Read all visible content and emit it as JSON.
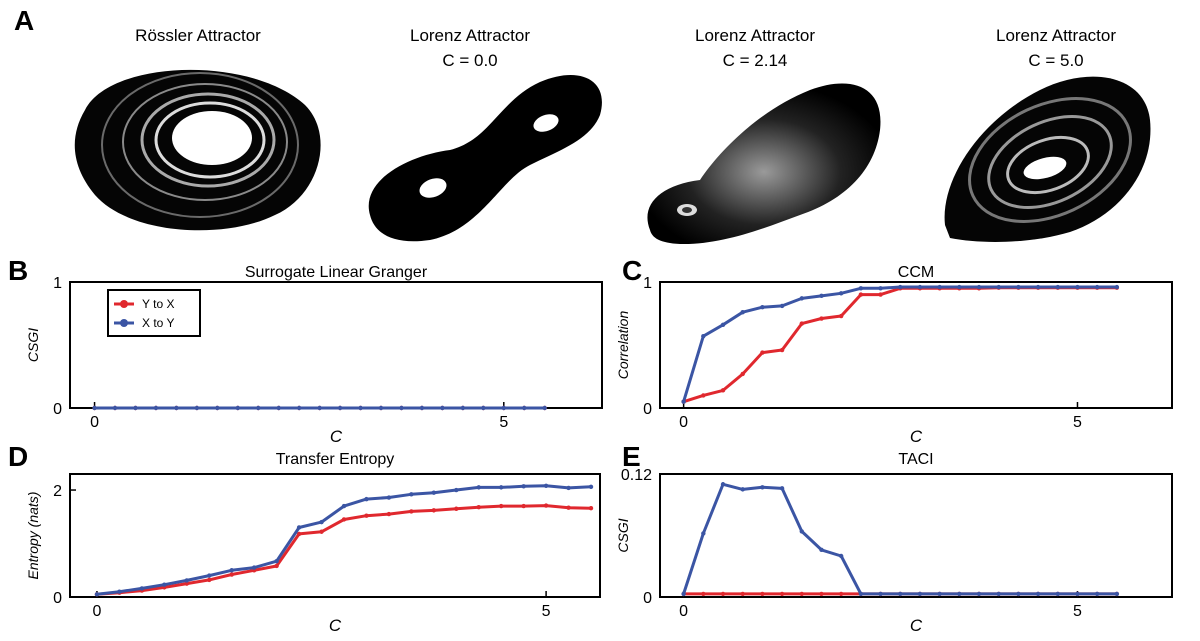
{
  "panel_a": {
    "letter": "A",
    "attractors": [
      {
        "title": "Rössler Attractor",
        "subtitle": ""
      },
      {
        "title": "Lorenz Attractor",
        "subtitle": "C = 0.0"
      },
      {
        "title": "Lorenz Attractor",
        "subtitle": "C = 2.14"
      },
      {
        "title": "Lorenz Attractor",
        "subtitle": "C = 5.0"
      }
    ]
  },
  "colors": {
    "y_to_x": "#e0282e",
    "x_to_y": "#3b55a4"
  },
  "chart_data": [
    {
      "id": "B",
      "letter": "B",
      "type": "line",
      "title": "Surrogate Linear Granger",
      "xlabel": "C",
      "ylabel": "CSGI",
      "xlim": [
        -0.3,
        6.2
      ],
      "ylim": [
        0,
        1
      ],
      "xticks": [
        0,
        5
      ],
      "yticks": [
        0,
        1
      ],
      "ytick_labels": [
        "0",
        "1"
      ],
      "legend": {
        "placement": "top-left",
        "entries": [
          "Y to X",
          "X to Y"
        ]
      },
      "x": [
        0,
        0.25,
        0.5,
        0.75,
        1,
        1.25,
        1.5,
        1.75,
        2,
        2.25,
        2.5,
        2.75,
        3,
        3.25,
        3.5,
        3.75,
        4,
        4.25,
        4.5,
        4.75,
        5,
        5.25,
        5.5
      ],
      "series": [
        {
          "name": "Y to X",
          "values": [
            0,
            0,
            0,
            0,
            0,
            0,
            0,
            0,
            0,
            0,
            0,
            0,
            0,
            0,
            0,
            0,
            0,
            0,
            0,
            0,
            0,
            0,
            0
          ]
        },
        {
          "name": "X to Y",
          "values": [
            0,
            0,
            0,
            0,
            0,
            0,
            0,
            0,
            0,
            0,
            0,
            0,
            0,
            0,
            0,
            0,
            0,
            0,
            0,
            0,
            0,
            0,
            0
          ]
        }
      ]
    },
    {
      "id": "C",
      "letter": "C",
      "type": "line",
      "title": "CCM",
      "xlabel": "C",
      "ylabel": "Correlation",
      "xlim": [
        -0.3,
        6.2
      ],
      "ylim": [
        0,
        1
      ],
      "xticks": [
        0,
        5
      ],
      "yticks": [
        0,
        1
      ],
      "ytick_labels": [
        "0",
        "1"
      ],
      "x": [
        0,
        0.25,
        0.5,
        0.75,
        1,
        1.25,
        1.5,
        1.75,
        2,
        2.25,
        2.5,
        2.75,
        3,
        3.25,
        3.5,
        3.75,
        4,
        4.25,
        4.5,
        4.75,
        5,
        5.25,
        5.5
      ],
      "series": [
        {
          "name": "Y to X",
          "values": [
            0.05,
            0.1,
            0.14,
            0.27,
            0.44,
            0.46,
            0.67,
            0.71,
            0.73,
            0.9,
            0.9,
            0.95,
            0.95,
            0.95,
            0.95,
            0.95,
            0.955,
            0.955,
            0.955,
            0.955,
            0.955,
            0.955,
            0.955
          ]
        },
        {
          "name": "X to Y",
          "values": [
            0.05,
            0.57,
            0.66,
            0.76,
            0.8,
            0.81,
            0.87,
            0.89,
            0.91,
            0.95,
            0.95,
            0.96,
            0.96,
            0.96,
            0.96,
            0.96,
            0.96,
            0.96,
            0.96,
            0.96,
            0.96,
            0.96,
            0.96
          ]
        }
      ]
    },
    {
      "id": "D",
      "letter": "D",
      "type": "line",
      "title": "Transfer Entropy",
      "xlabel": "C",
      "ylabel": "Entropy (nats)",
      "xlim": [
        -0.3,
        5.6
      ],
      "ylim": [
        0,
        2.3
      ],
      "xticks": [
        0,
        5
      ],
      "yticks": [
        0,
        2
      ],
      "ytick_labels": [
        "0",
        "2"
      ],
      "x": [
        0,
        0.25,
        0.5,
        0.75,
        1,
        1.25,
        1.5,
        1.75,
        2,
        2.25,
        2.5,
        2.75,
        3,
        3.25,
        3.5,
        3.75,
        4,
        4.25,
        4.5,
        4.75,
        5,
        5.25,
        5.5
      ],
      "series": [
        {
          "name": "Y to X",
          "values": [
            0.05,
            0.08,
            0.12,
            0.18,
            0.25,
            0.32,
            0.42,
            0.5,
            0.58,
            1.18,
            1.22,
            1.45,
            1.52,
            1.55,
            1.6,
            1.62,
            1.65,
            1.68,
            1.7,
            1.7,
            1.71,
            1.67,
            1.66
          ]
        },
        {
          "name": "X to Y",
          "values": [
            0.05,
            0.1,
            0.16,
            0.23,
            0.31,
            0.4,
            0.5,
            0.55,
            0.67,
            1.3,
            1.4,
            1.7,
            1.83,
            1.86,
            1.92,
            1.95,
            2.0,
            2.05,
            2.05,
            2.07,
            2.08,
            2.04,
            2.06
          ]
        }
      ]
    },
    {
      "id": "E",
      "letter": "E",
      "type": "line",
      "title": "TACI",
      "xlabel": "C",
      "ylabel": "CSGI",
      "xlim": [
        -0.3,
        6.2
      ],
      "ylim": [
        0,
        0.12
      ],
      "xticks": [
        0,
        5
      ],
      "yticks": [
        0,
        0.12
      ],
      "ytick_labels": [
        "0",
        "0.12"
      ],
      "x": [
        0,
        0.25,
        0.5,
        0.75,
        1,
        1.25,
        1.5,
        1.75,
        2,
        2.25,
        2.5,
        2.75,
        3,
        3.25,
        3.5,
        3.75,
        4,
        4.25,
        4.5,
        4.75,
        5,
        5.25,
        5.5
      ],
      "series": [
        {
          "name": "Y to X",
          "values": [
            0.003,
            0.003,
            0.003,
            0.003,
            0.003,
            0.003,
            0.003,
            0.003,
            0.003,
            0.003,
            0.003,
            0.003,
            0.003,
            0.003,
            0.003,
            0.003,
            0.003,
            0.003,
            0.003,
            0.003,
            0.003,
            0.003,
            0.003
          ]
        },
        {
          "name": "X to Y",
          "values": [
            0.003,
            0.062,
            0.11,
            0.105,
            0.107,
            0.106,
            0.064,
            0.046,
            0.04,
            0.003,
            0.003,
            0.003,
            0.003,
            0.003,
            0.003,
            0.003,
            0.003,
            0.003,
            0.003,
            0.003,
            0.003,
            0.003,
            0.003
          ]
        }
      ]
    }
  ]
}
